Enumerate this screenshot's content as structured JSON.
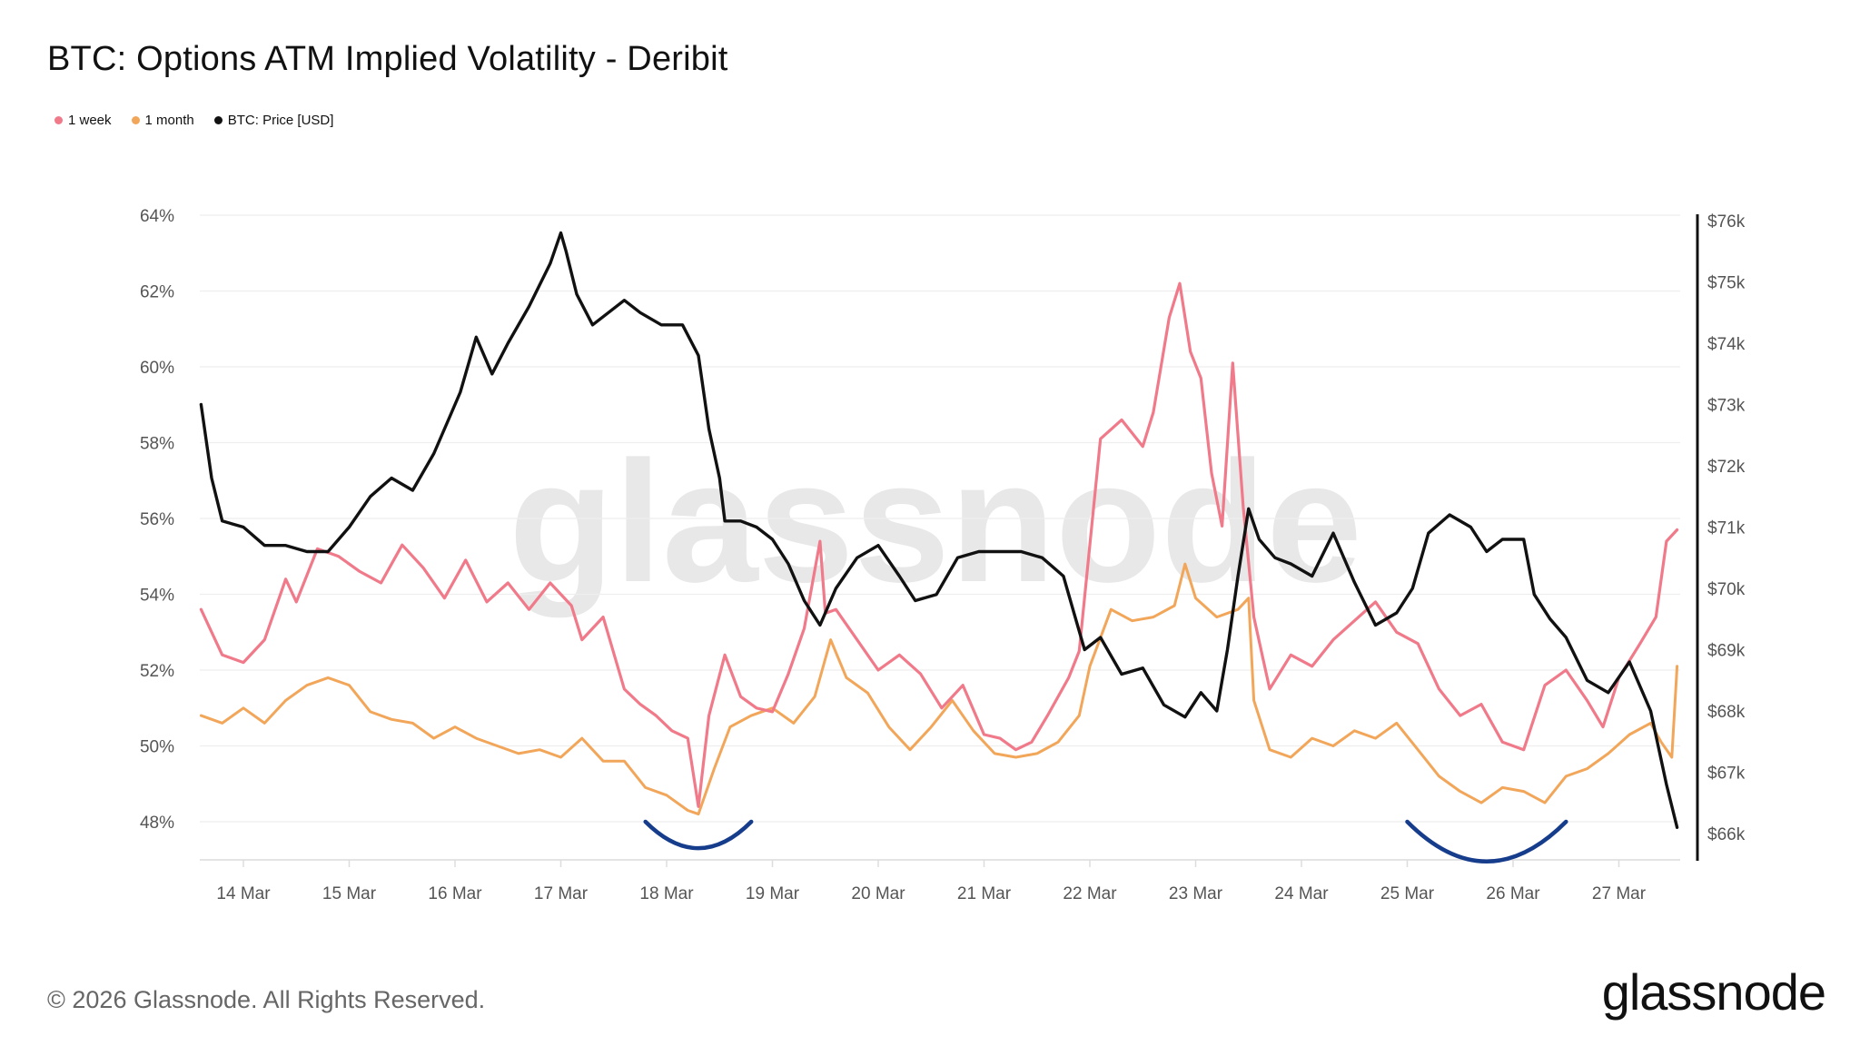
{
  "title": "BTC: Options ATM Implied Volatility - Deribit",
  "legend": [
    {
      "label": "1 week",
      "color": "#f07a8a"
    },
    {
      "label": "1 month",
      "color": "#f2a65a"
    },
    {
      "label": "BTC: Price [USD]",
      "color": "#111111"
    }
  ],
  "footer": "© 2026 Glassnode. All Rights Reserved.",
  "brand": "glassnode",
  "watermark": "glassnode",
  "colors": {
    "week": "#f07a8a",
    "month": "#f2a65a",
    "price": "#111111",
    "annotation": "#163c8c",
    "grid": "#eeeeee"
  },
  "chart_data": {
    "type": "line",
    "title": "BTC: Options ATM Implied Volatility - Deribit",
    "x_tick_labels": [
      "14 Mar",
      "15 Mar",
      "16 Mar",
      "17 Mar",
      "18 Mar",
      "19 Mar",
      "20 Mar",
      "21 Mar",
      "22 Mar",
      "23 Mar",
      "24 Mar",
      "25 Mar",
      "26 Mar",
      "27 Mar"
    ],
    "x_range_days": [
      13.6,
      27.55
    ],
    "left_axis": {
      "ticks": [
        48,
        50,
        52,
        54,
        56,
        58,
        60,
        62,
        64
      ],
      "tick_labels": [
        "48%",
        "50%",
        "52%",
        "54%",
        "56%",
        "58%",
        "60%",
        "62%",
        "64%"
      ],
      "range": [
        47,
        64
      ]
    },
    "right_axis": {
      "ticks": [
        66,
        67,
        68,
        69,
        70,
        71,
        72,
        73,
        74,
        75,
        76
      ],
      "tick_labels": [
        "$66k",
        "$67k",
        "$68k",
        "$69k",
        "$70k",
        "$71k",
        "$72k",
        "$73k",
        "$74k",
        "$75k",
        "$76k"
      ],
      "range": [
        65.8,
        76.2
      ]
    },
    "grid": true,
    "legend_position": "top-left",
    "series": [
      {
        "name": "1 week",
        "axis": "left",
        "x": [
          13.6,
          13.8,
          14.0,
          14.2,
          14.4,
          14.5,
          14.7,
          14.9,
          15.1,
          15.3,
          15.5,
          15.7,
          15.9,
          16.1,
          16.3,
          16.5,
          16.7,
          16.9,
          17.1,
          17.2,
          17.4,
          17.6,
          17.75,
          17.9,
          18.05,
          18.2,
          18.3,
          18.4,
          18.55,
          18.7,
          18.85,
          19.0,
          19.15,
          19.3,
          19.45,
          19.5,
          19.6,
          19.8,
          20.0,
          20.2,
          20.4,
          20.6,
          20.8,
          21.0,
          21.15,
          21.3,
          21.45,
          21.6,
          21.8,
          21.9,
          22.1,
          22.3,
          22.5,
          22.6,
          22.75,
          22.85,
          22.95,
          23.05,
          23.15,
          23.25,
          23.35,
          23.45,
          23.55,
          23.7,
          23.9,
          24.1,
          24.3,
          24.5,
          24.7,
          24.9,
          25.1,
          25.3,
          25.5,
          25.7,
          25.9,
          26.1,
          26.3,
          26.5,
          26.7,
          26.85,
          27.0,
          27.2,
          27.35,
          27.45,
          27.55
        ],
        "values": [
          53.6,
          52.4,
          52.2,
          52.8,
          54.4,
          53.8,
          55.2,
          55.0,
          54.6,
          54.3,
          55.3,
          54.7,
          53.9,
          54.9,
          53.8,
          54.3,
          53.6,
          54.3,
          53.7,
          52.8,
          53.4,
          51.5,
          51.1,
          50.8,
          50.4,
          50.2,
          48.4,
          50.8,
          52.4,
          51.3,
          51.0,
          50.9,
          51.9,
          53.1,
          55.4,
          53.5,
          53.6,
          52.8,
          52.0,
          52.4,
          51.9,
          51.0,
          51.6,
          50.3,
          50.2,
          49.9,
          50.1,
          50.8,
          51.8,
          52.5,
          58.1,
          58.6,
          57.9,
          58.8,
          61.3,
          62.2,
          60.4,
          59.7,
          57.2,
          55.8,
          60.1,
          56.3,
          53.4,
          51.5,
          52.4,
          52.1,
          52.8,
          53.3,
          53.8,
          53.0,
          52.7,
          51.5,
          50.8,
          51.1,
          50.1,
          49.9,
          51.6,
          52.0,
          51.2,
          50.5,
          51.8,
          52.7,
          53.4,
          55.4,
          55.7
        ]
      },
      {
        "name": "1 month",
        "axis": "left",
        "x": [
          13.6,
          13.8,
          14.0,
          14.2,
          14.4,
          14.6,
          14.8,
          15.0,
          15.2,
          15.4,
          15.6,
          15.8,
          16.0,
          16.2,
          16.4,
          16.6,
          16.8,
          17.0,
          17.2,
          17.4,
          17.6,
          17.8,
          18.0,
          18.2,
          18.3,
          18.45,
          18.6,
          18.8,
          19.0,
          19.2,
          19.4,
          19.55,
          19.7,
          19.9,
          20.1,
          20.3,
          20.5,
          20.7,
          20.9,
          21.1,
          21.3,
          21.5,
          21.7,
          21.9,
          22.0,
          22.2,
          22.4,
          22.6,
          22.8,
          22.9,
          23.0,
          23.2,
          23.4,
          23.5,
          23.55,
          23.7,
          23.9,
          24.1,
          24.3,
          24.5,
          24.7,
          24.9,
          25.1,
          25.3,
          25.5,
          25.7,
          25.9,
          26.1,
          26.3,
          26.5,
          26.7,
          26.9,
          27.1,
          27.3,
          27.4,
          27.5,
          27.55
        ],
        "values": [
          50.8,
          50.6,
          51.0,
          50.6,
          51.2,
          51.6,
          51.8,
          51.6,
          50.9,
          50.7,
          50.6,
          50.2,
          50.5,
          50.2,
          50.0,
          49.8,
          49.9,
          49.7,
          50.2,
          49.6,
          49.6,
          48.9,
          48.7,
          48.3,
          48.2,
          49.4,
          50.5,
          50.8,
          51.0,
          50.6,
          51.3,
          52.8,
          51.8,
          51.4,
          50.5,
          49.9,
          50.5,
          51.2,
          50.4,
          49.8,
          49.7,
          49.8,
          50.1,
          50.8,
          52.1,
          53.6,
          53.3,
          53.4,
          53.7,
          54.8,
          53.9,
          53.4,
          53.6,
          53.9,
          51.2,
          49.9,
          49.7,
          50.2,
          50.0,
          50.4,
          50.2,
          50.6,
          49.9,
          49.2,
          48.8,
          48.5,
          48.9,
          48.8,
          48.5,
          49.2,
          49.4,
          49.8,
          50.3,
          50.6,
          50.1,
          49.7,
          52.1
        ]
      },
      {
        "name": "BTC: Price [USD]",
        "axis": "right",
        "x": [
          13.6,
          13.7,
          13.8,
          14.0,
          14.2,
          14.4,
          14.6,
          14.8,
          15.0,
          15.2,
          15.4,
          15.6,
          15.8,
          15.95,
          16.05,
          16.2,
          16.35,
          16.5,
          16.7,
          16.9,
          17.0,
          17.05,
          17.15,
          17.3,
          17.45,
          17.6,
          17.75,
          17.95,
          18.15,
          18.3,
          18.4,
          18.5,
          18.55,
          18.7,
          18.85,
          19.0,
          19.15,
          19.3,
          19.45,
          19.6,
          19.8,
          20.0,
          20.2,
          20.35,
          20.55,
          20.75,
          20.95,
          21.15,
          21.35,
          21.55,
          21.75,
          21.85,
          21.95,
          22.1,
          22.3,
          22.5,
          22.7,
          22.9,
          23.05,
          23.2,
          23.3,
          23.4,
          23.5,
          23.6,
          23.75,
          23.9,
          24.1,
          24.3,
          24.5,
          24.7,
          24.9,
          25.05,
          25.2,
          25.4,
          25.6,
          25.75,
          25.9,
          26.1,
          26.2,
          26.35,
          26.5,
          26.7,
          26.9,
          27.1,
          27.3,
          27.45,
          27.55
        ],
        "values": [
          73.0,
          71.8,
          71.1,
          71.0,
          70.7,
          70.7,
          70.6,
          70.6,
          71.0,
          71.5,
          71.8,
          71.6,
          72.2,
          72.8,
          73.2,
          74.1,
          73.5,
          74.0,
          74.6,
          75.3,
          75.8,
          75.5,
          74.8,
          74.3,
          74.5,
          74.7,
          74.5,
          74.3,
          74.3,
          73.8,
          72.6,
          71.8,
          71.1,
          71.1,
          71.0,
          70.8,
          70.4,
          69.8,
          69.4,
          70.0,
          70.5,
          70.7,
          70.2,
          69.8,
          69.9,
          70.5,
          70.6,
          70.6,
          70.6,
          70.5,
          70.2,
          69.6,
          69.0,
          69.2,
          68.6,
          68.7,
          68.1,
          67.9,
          68.3,
          68.0,
          69.0,
          70.2,
          71.3,
          70.8,
          70.5,
          70.4,
          70.2,
          70.9,
          70.1,
          69.4,
          69.6,
          70.0,
          70.9,
          71.2,
          71.0,
          70.6,
          70.8,
          70.8,
          69.9,
          69.5,
          69.2,
          68.5,
          68.3,
          68.8,
          68.0,
          66.8,
          66.1
        ]
      }
    ],
    "annotations": [
      {
        "type": "arc",
        "x_center": 18.3,
        "x_half_width": 0.5,
        "y": 48.0
      },
      {
        "type": "arc",
        "x_center": 25.75,
        "x_half_width": 0.75,
        "y": 48.0
      }
    ]
  }
}
